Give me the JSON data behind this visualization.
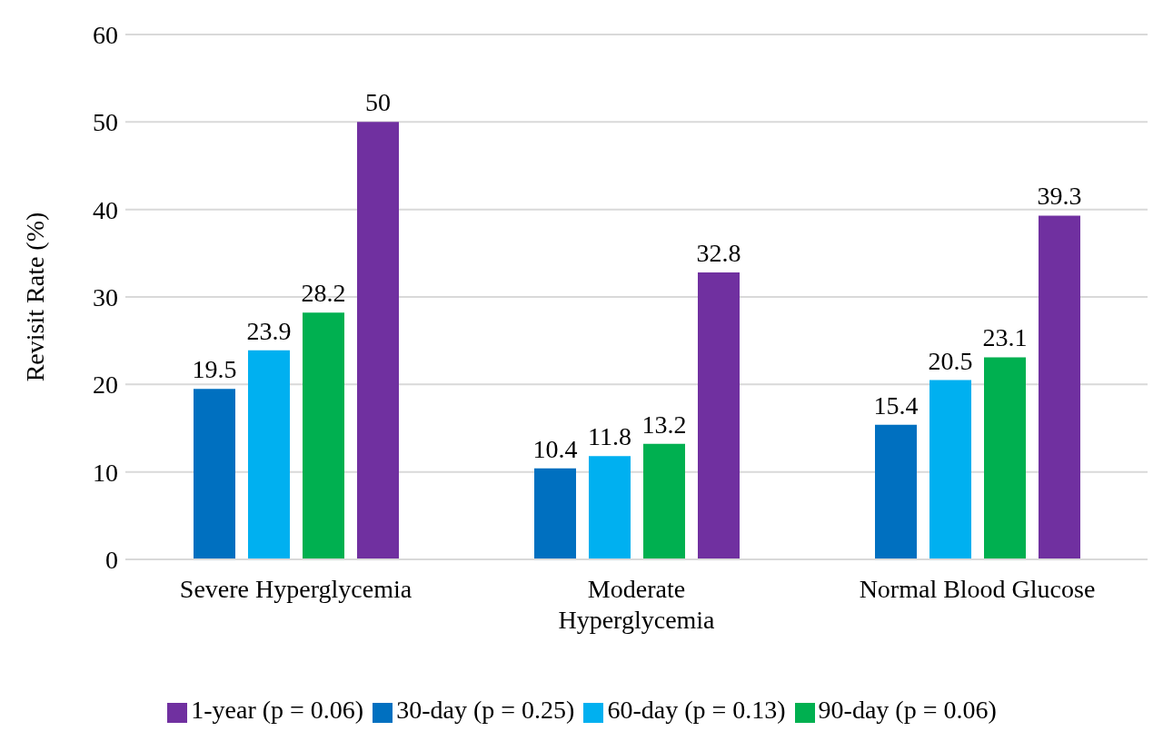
{
  "chart_data": {
    "type": "bar",
    "ylabel": "Revisit Rate (%)",
    "categories": [
      "Severe Hyperglycemia",
      "Moderate Hyperglycemia",
      "Normal Blood Glucose"
    ],
    "series": [
      {
        "name": "30-day (p = 0.25)",
        "color": "#0070c0",
        "values": [
          19.5,
          10.4,
          15.4
        ]
      },
      {
        "name": "60-day (p = 0.13)",
        "color": "#00b0f0",
        "values": [
          23.9,
          11.8,
          20.5
        ]
      },
      {
        "name": "90-day (p = 0.06)",
        "color": "#00b050",
        "values": [
          28.2,
          13.2,
          23.1
        ]
      },
      {
        "name": "1-year (p = 0.06)",
        "color": "#7030a0",
        "values": [
          50,
          32.8,
          39.3
        ]
      }
    ],
    "ylim": [
      0,
      60
    ],
    "yticks": [
      0,
      10,
      20,
      30,
      40,
      50,
      60
    ],
    "grid": "y",
    "legend": "bottom",
    "data_labels": true
  }
}
